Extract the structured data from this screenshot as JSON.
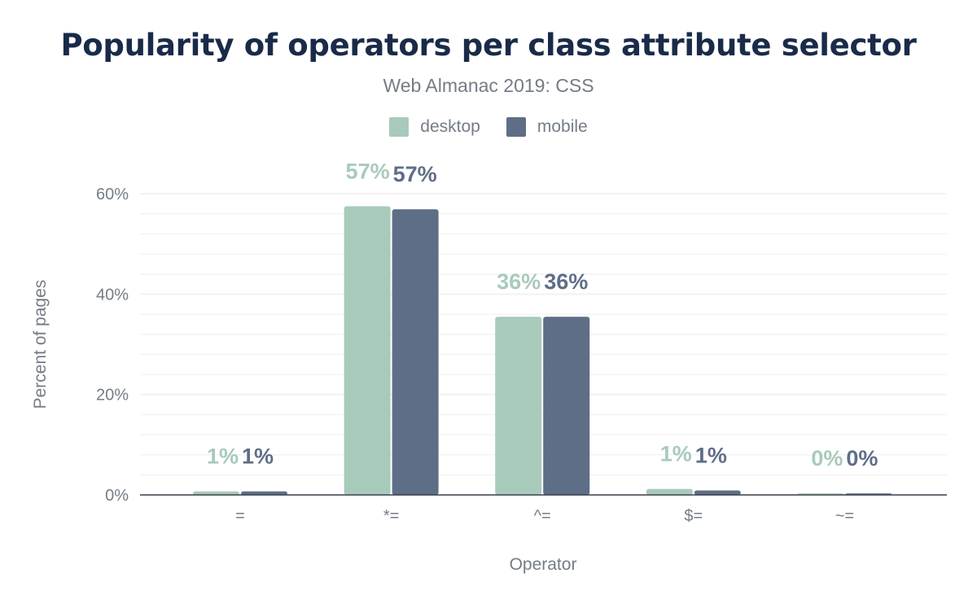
{
  "chart_data": {
    "type": "bar",
    "title": "Popularity of operators per class attribute selector",
    "subtitle": "Web Almanac 2019: CSS",
    "xlabel": "Operator",
    "ylabel": "Percent of pages",
    "categories": [
      "=",
      "*=",
      "^=",
      "$=",
      "~="
    ],
    "series": [
      {
        "name": "desktop",
        "color": "#a8cabb",
        "values": [
          0.7,
          57.5,
          35.5,
          1.2,
          0.3
        ],
        "labels": [
          "1%",
          "57%",
          "36%",
          "1%",
          "0%"
        ]
      },
      {
        "name": "mobile",
        "color": "#5f6e87",
        "values": [
          0.7,
          56.9,
          35.5,
          0.9,
          0.3
        ],
        "labels": [
          "1%",
          "57%",
          "36%",
          "1%",
          "0%"
        ]
      }
    ],
    "ylim": [
      0,
      60
    ],
    "yticks": [
      "0%",
      "20%",
      "40%",
      "60%"
    ],
    "ytick_values": [
      0,
      20,
      40,
      60
    ],
    "grid": true,
    "legend": "top-center"
  }
}
